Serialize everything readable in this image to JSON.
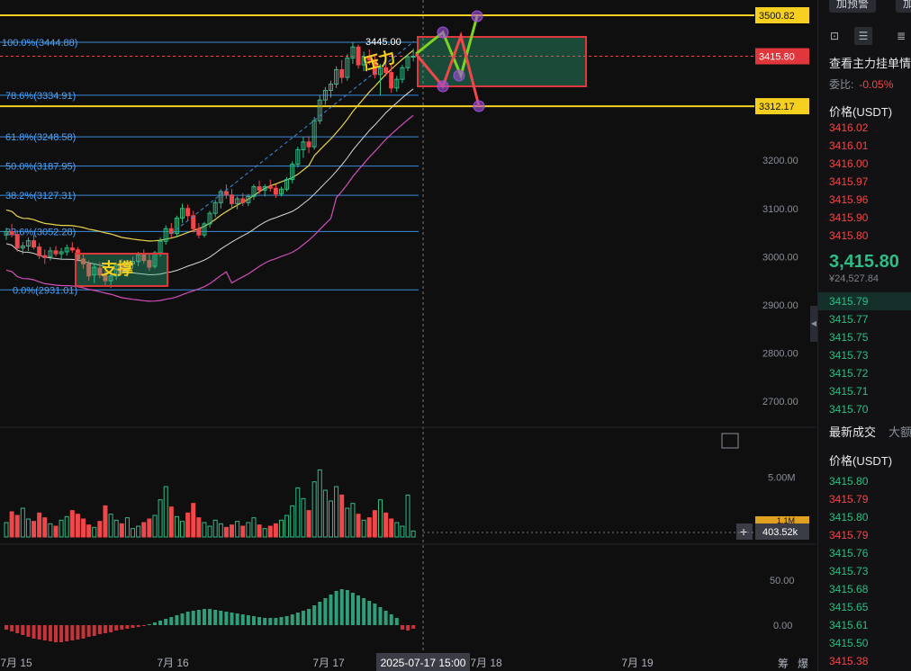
{
  "chart_data": {
    "type": "candlestick",
    "x_ticks": [
      "7月 15",
      "7月 16",
      "7月 17",
      "7月 18",
      "7月 19"
    ],
    "y_ticks": [
      "3200.00",
      "3100.00",
      "3000.00",
      "2900.00",
      "2800.00",
      "2700.00"
    ],
    "y_range": [
      2680,
      3520
    ],
    "price_marks": [
      {
        "label": "3500.82",
        "value": 3500.82,
        "color": "#f5d020"
      },
      {
        "label": "3415.80",
        "value": 3415.8,
        "color": "#e0373d"
      },
      {
        "label": "3312.17",
        "value": 3312.17,
        "color": "#f5d020"
      }
    ],
    "fib_levels": [
      {
        "label": "100.0%(3444.88)",
        "value": 3444.88
      },
      {
        "label": "78.6%(3334.91)",
        "value": 3334.91
      },
      {
        "label": "61.8%(3248.58)",
        "value": 3248.58
      },
      {
        "label": "50.0%(3187.95)",
        "value": 3187.95
      },
      {
        "label": "38.2%(3127.31)",
        "value": 3127.31
      },
      {
        "label": "23.6%(3052.28)",
        "value": 3052.28
      },
      {
        "label": "0.0%(2931.01)",
        "value": 2931.01
      }
    ],
    "annotations": {
      "support": "支撑",
      "pressure": "压力",
      "high_label": "3445.00",
      "cursor_time": "2025-07-17 15:00"
    },
    "candles": [
      [
        3045,
        3060,
        3035,
        3052
      ],
      [
        3052,
        3068,
        3040,
        3046
      ],
      [
        3046,
        3055,
        3010,
        3018
      ],
      [
        3018,
        3030,
        3005,
        3022
      ],
      [
        3022,
        3040,
        3012,
        3033
      ],
      [
        3033,
        3045,
        3015,
        3020
      ],
      [
        3020,
        3028,
        2995,
        3002
      ],
      [
        3002,
        3015,
        2985,
        2998
      ],
      [
        3000,
        3020,
        2992,
        3012
      ],
      [
        3012,
        3022,
        3000,
        3006
      ],
      [
        3006,
        3018,
        2995,
        3010
      ],
      [
        3010,
        3025,
        3002,
        3018
      ],
      [
        3018,
        3030,
        3008,
        3014
      ],
      [
        3014,
        3020,
        2990,
        2995
      ],
      [
        2995,
        3005,
        2975,
        2985
      ],
      [
        2985,
        2992,
        2950,
        2960
      ],
      [
        2962,
        2985,
        2945,
        2978
      ],
      [
        2976,
        2988,
        2955,
        2962
      ],
      [
        2962,
        2975,
        2940,
        2950
      ],
      [
        2950,
        2968,
        2935,
        2960
      ],
      [
        2960,
        2988,
        2952,
        2982
      ],
      [
        2982,
        2995,
        2962,
        2970
      ],
      [
        2970,
        2990,
        2958,
        2985
      ],
      [
        2985,
        3000,
        2975,
        2990
      ],
      [
        2990,
        3010,
        2980,
        3004
      ],
      [
        3004,
        3015,
        2985,
        2992
      ],
      [
        2992,
        3005,
        2970,
        2978
      ],
      [
        2980,
        3012,
        2975,
        3008
      ],
      [
        3008,
        3040,
        3000,
        3032
      ],
      [
        3032,
        3065,
        3025,
        3058
      ],
      [
        3058,
        3070,
        3040,
        3048
      ],
      [
        3048,
        3085,
        3042,
        3080
      ],
      [
        3080,
        3110,
        3070,
        3100
      ],
      [
        3100,
        3108,
        3075,
        3085
      ],
      [
        3085,
        3095,
        3050,
        3058
      ],
      [
        3058,
        3070,
        3038,
        3045
      ],
      [
        3045,
        3072,
        3040,
        3068
      ],
      [
        3068,
        3095,
        3060,
        3090
      ],
      [
        3090,
        3118,
        3082,
        3112
      ],
      [
        3112,
        3140,
        3100,
        3135
      ],
      [
        3135,
        3150,
        3120,
        3128
      ],
      [
        3128,
        3140,
        3100,
        3110
      ],
      [
        3110,
        3125,
        3098,
        3120
      ],
      [
        3120,
        3132,
        3105,
        3112
      ],
      [
        3112,
        3130,
        3105,
        3125
      ],
      [
        3125,
        3150,
        3118,
        3145
      ],
      [
        3145,
        3158,
        3130,
        3138
      ],
      [
        3138,
        3150,
        3125,
        3145
      ],
      [
        3145,
        3160,
        3135,
        3142
      ],
      [
        3142,
        3150,
        3122,
        3130
      ],
      [
        3130,
        3145,
        3125,
        3140
      ],
      [
        3140,
        3165,
        3135,
        3160
      ],
      [
        3160,
        3198,
        3152,
        3192
      ],
      [
        3192,
        3228,
        3185,
        3222
      ],
      [
        3222,
        3248,
        3205,
        3238
      ],
      [
        3238,
        3250,
        3215,
        3228
      ],
      [
        3228,
        3290,
        3222,
        3282
      ],
      [
        3282,
        3335,
        3275,
        3325
      ],
      [
        3325,
        3352,
        3315,
        3345
      ],
      [
        3345,
        3365,
        3330,
        3358
      ],
      [
        3358,
        3395,
        3350,
        3388
      ],
      [
        3388,
        3408,
        3360,
        3372
      ],
      [
        3372,
        3420,
        3365,
        3412
      ],
      [
        3412,
        3445,
        3400,
        3435
      ],
      [
        3435,
        3440,
        3390,
        3398
      ],
      [
        3398,
        3425,
        3385,
        3415
      ],
      [
        3415,
        3430,
        3398,
        3408
      ],
      [
        3408,
        3418,
        3370,
        3378
      ],
      [
        3378,
        3400,
        3335,
        3392
      ],
      [
        3392,
        3410,
        3375,
        3382
      ],
      [
        3382,
        3400,
        3340,
        3350
      ],
      [
        3350,
        3375,
        3342,
        3368
      ],
      [
        3368,
        3398,
        3360,
        3392
      ],
      [
        3392,
        3420,
        3385,
        3415
      ],
      [
        3415,
        3432,
        3405,
        3415.8
      ]
    ],
    "volume_ticks": [
      "5.00M"
    ],
    "volume_badges": [
      "1.1M",
      "403.52k"
    ],
    "volume_ylim": [
      0,
      6000000
    ],
    "volumes": [
      1.2,
      2.1,
      1.8,
      2.4,
      1.5,
      1.3,
      2.0,
      1.6,
      1.1,
      0.9,
      1.4,
      1.7,
      2.2,
      1.9,
      1.5,
      1.0,
      0.8,
      1.3,
      2.6,
      1.9,
      1.4,
      1.1,
      1.6,
      0.7,
      0.9,
      1.2,
      1.5,
      1.8,
      3.1,
      4.2,
      2.5,
      1.7,
      1.3,
      2.0,
      2.8,
      1.6,
      1.2,
      0.9,
      1.4,
      1.1,
      0.8,
      1.0,
      1.3,
      0.9,
      1.2,
      1.6,
      1.0,
      0.7,
      0.9,
      1.1,
      1.4,
      1.8,
      2.6,
      4.1,
      3.2,
      2.2,
      4.6,
      5.6,
      3.9,
      3.0,
      4.2,
      3.5,
      2.4,
      2.8,
      1.9,
      1.4,
      1.6,
      2.2,
      3.1,
      2.0,
      1.5,
      1.2,
      0.9,
      3.5,
      0.5
    ],
    "macd_ticks": [
      "50.00",
      "0.00"
    ],
    "macd_ylim": [
      -30,
      90
    ],
    "macd_hist": [
      -5,
      -7,
      -9,
      -11,
      -13,
      -15,
      -16,
      -17,
      -18,
      -19,
      -19,
      -18,
      -17,
      -16,
      -15,
      -13,
      -12,
      -10,
      -9,
      -8,
      -6,
      -5,
      -4,
      -3,
      -2,
      -1,
      1,
      3,
      5,
      7,
      9,
      11,
      13,
      15,
      16,
      17,
      18,
      18,
      17,
      16,
      15,
      14,
      13,
      12,
      11,
      10,
      9,
      8,
      8,
      8,
      9,
      10,
      12,
      14,
      16,
      18,
      22,
      26,
      30,
      34,
      38,
      40,
      39,
      36,
      33,
      30,
      27,
      24,
      20,
      16,
      12,
      8,
      -5,
      -6,
      -4
    ]
  },
  "sidebar": {
    "add_alert": "加预警",
    "add_more": "加",
    "orderbook_title": "查看主力挂单情",
    "ratio_label": "委比:",
    "ratio_value": "-0.05%",
    "price_header": "价格(USDT)",
    "asks": [
      "3416.02",
      "3416.01",
      "3416.00",
      "3415.97",
      "3415.96",
      "3415.90",
      "3415.80"
    ],
    "last_price": "3,415.80",
    "last_price_cny": "¥24,527.84",
    "bids": [
      "3415.79",
      "3415.77",
      "3415.75",
      "3415.73",
      "3415.72",
      "3415.71",
      "3415.70"
    ],
    "trades_tab": "最新成交",
    "trades_tab2": "大额",
    "trades_header": "价格(USDT)",
    "trades": [
      {
        "p": "3415.80",
        "side": "buy"
      },
      {
        "p": "3415.79",
        "side": "sell"
      },
      {
        "p": "3415.80",
        "side": "buy"
      },
      {
        "p": "3415.79",
        "side": "sell"
      },
      {
        "p": "3415.76",
        "side": "buy"
      },
      {
        "p": "3415.73",
        "side": "buy"
      },
      {
        "p": "3415.68",
        "side": "buy"
      },
      {
        "p": "3415.65",
        "side": "buy"
      },
      {
        "p": "3415.61",
        "side": "buy"
      },
      {
        "p": "3415.50",
        "side": "buy"
      },
      {
        "p": "3415.38",
        "side": "sell"
      }
    ]
  },
  "footer": {
    "left_label": "筹",
    "right_label": "爆"
  }
}
